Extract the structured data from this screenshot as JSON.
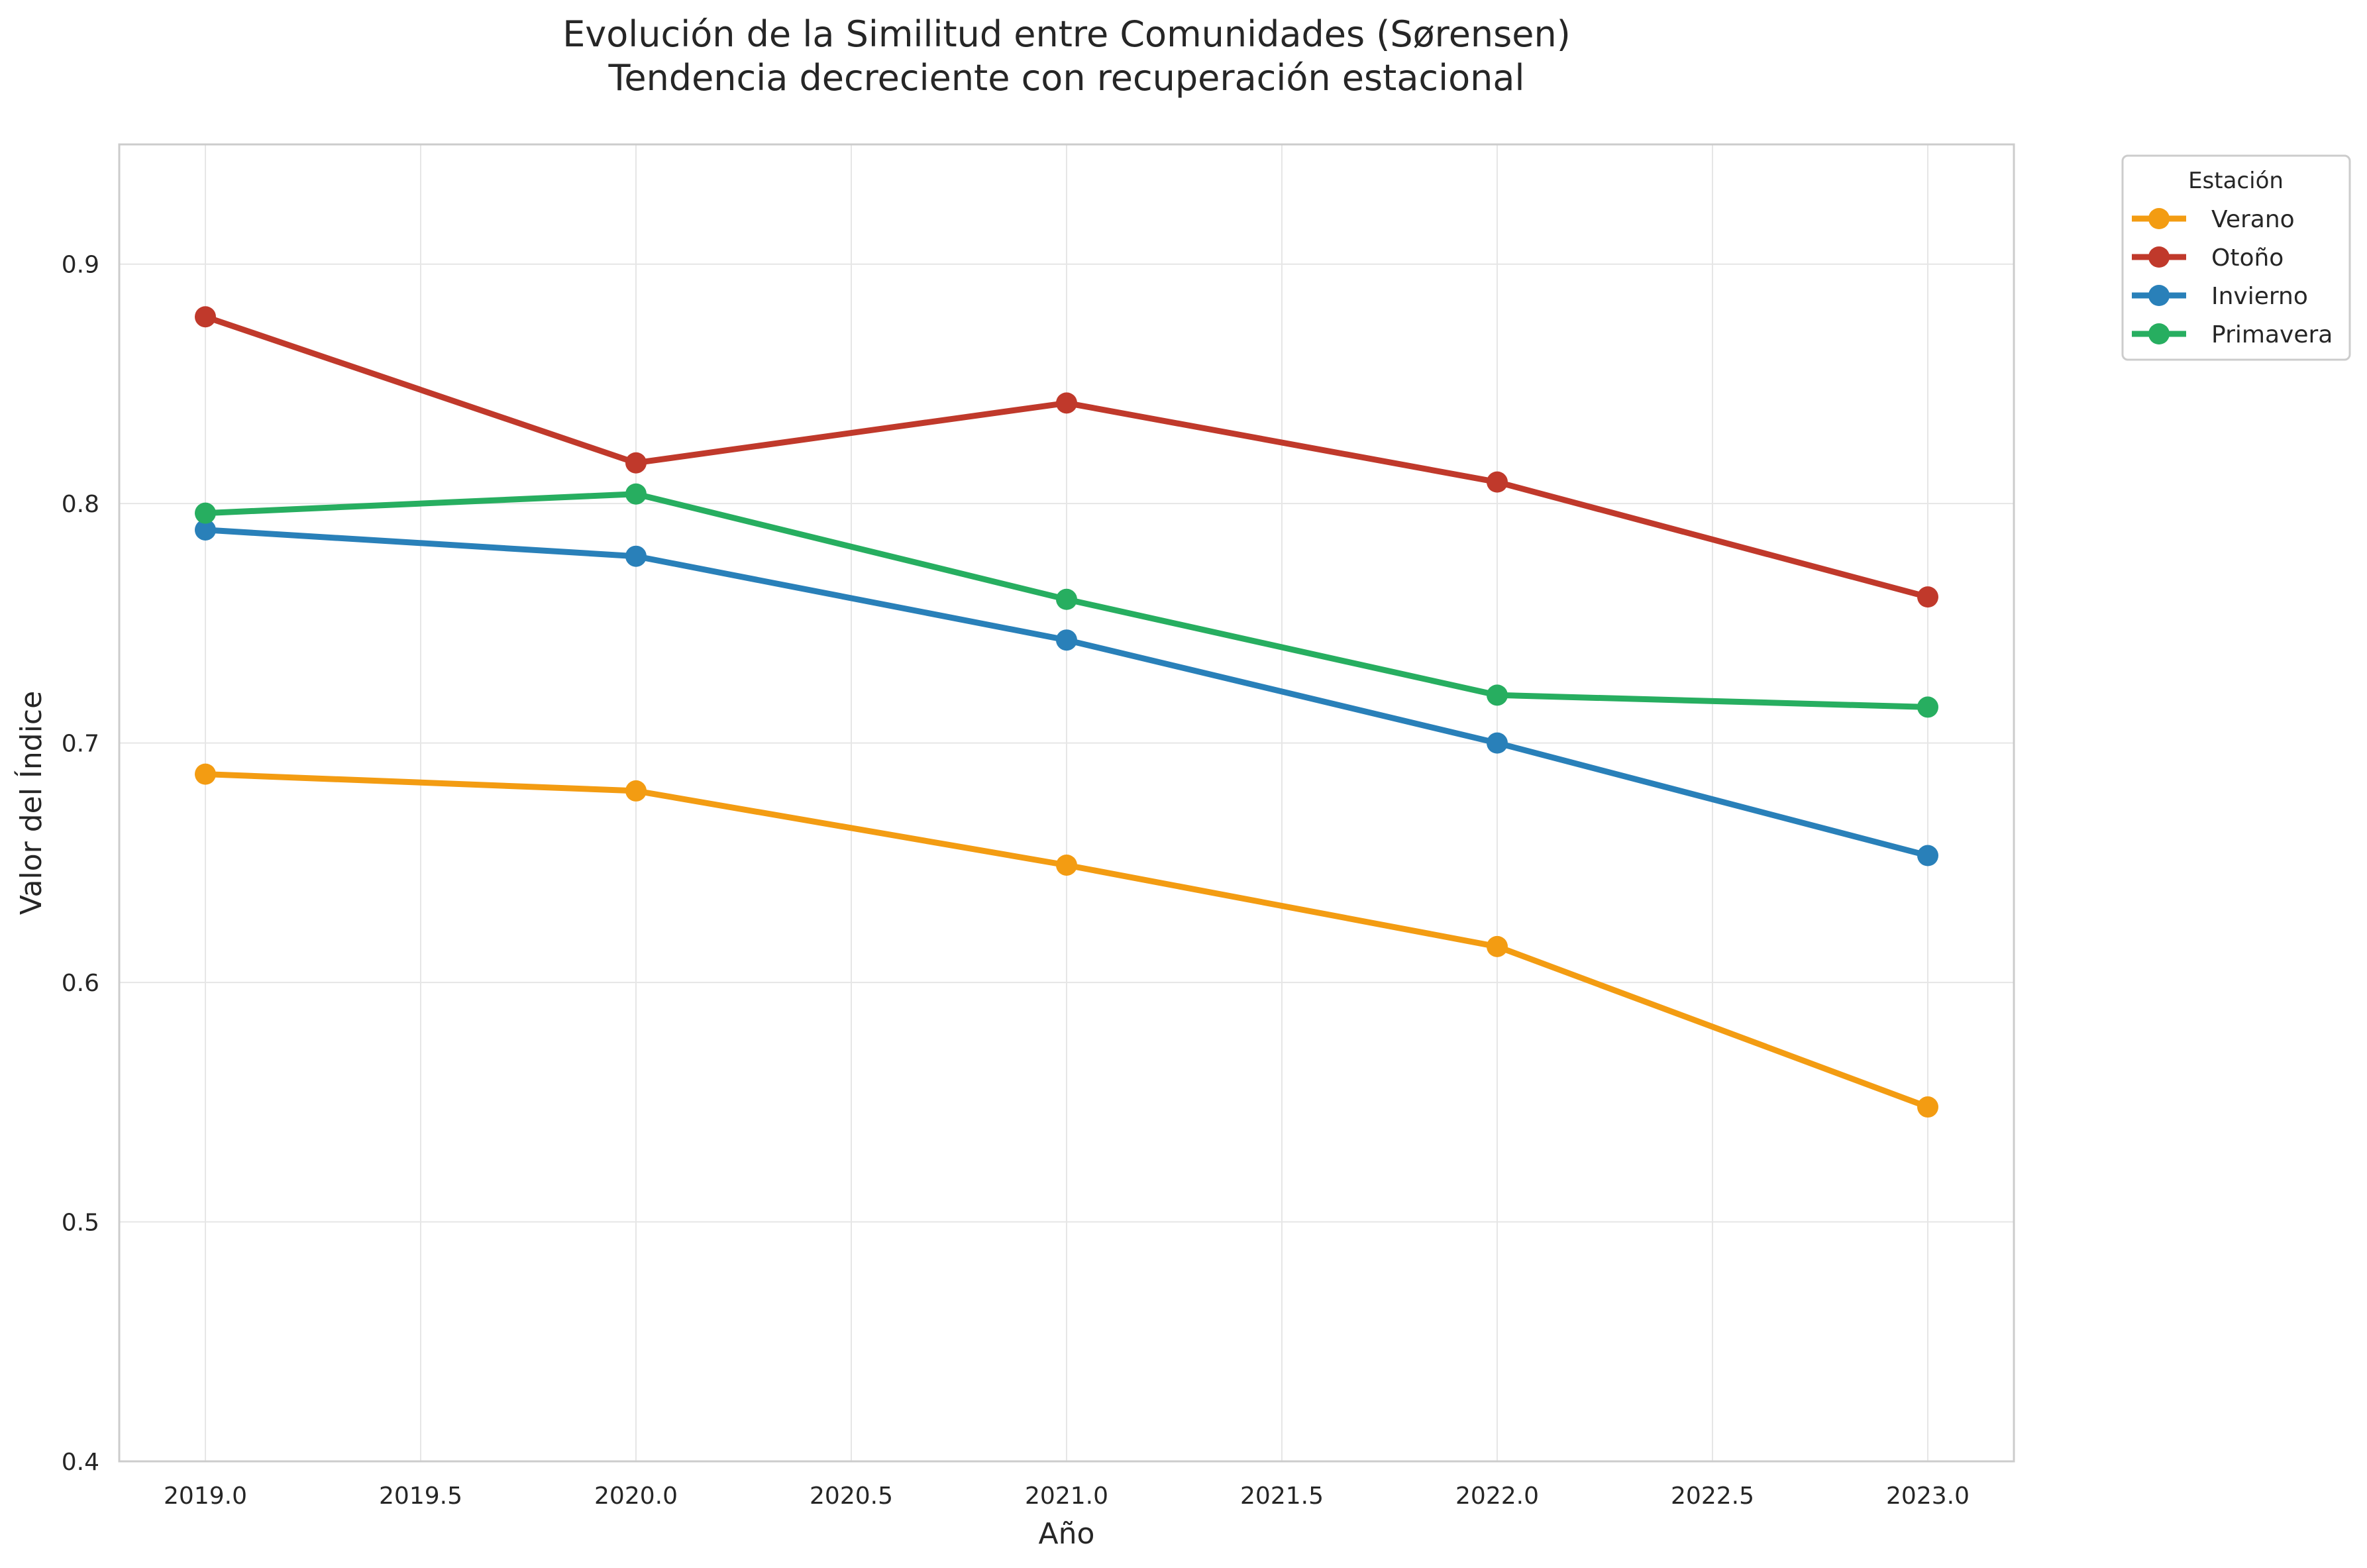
{
  "chart_data": {
    "type": "line",
    "title": "Evolución de la Similitud entre Comunidades (Sørensen)",
    "subtitle": "Tendencia decreciente con recuperación estacional",
    "xlabel": "Año",
    "ylabel": "Valor del Índice",
    "x": [
      2019,
      2020,
      2021,
      2022,
      2023
    ],
    "xlim": [
      2018.8,
      2023.2
    ],
    "ylim": [
      0.4,
      0.95
    ],
    "xticks": [
      2019.0,
      2019.5,
      2020.0,
      2020.5,
      2021.0,
      2021.5,
      2022.0,
      2022.5,
      2023.0
    ],
    "xtick_labels": [
      "2019.0",
      "2019.5",
      "2020.0",
      "2020.5",
      "2021.0",
      "2021.5",
      "2022.0",
      "2022.5",
      "2023.0"
    ],
    "yticks": [
      0.4,
      0.5,
      0.6,
      0.7,
      0.8,
      0.9
    ],
    "ytick_labels": [
      "0.4",
      "0.5",
      "0.6",
      "0.7",
      "0.8",
      "0.9"
    ],
    "grid": true,
    "legend": {
      "title": "Estación",
      "placement": "outside top-right"
    },
    "series": [
      {
        "name": "Verano",
        "color": "#f39c12",
        "values": [
          0.687,
          0.68,
          0.649,
          0.615,
          0.548
        ]
      },
      {
        "name": "Otoño",
        "color": "#c0392b",
        "values": [
          0.878,
          0.817,
          0.842,
          0.809,
          0.761
        ]
      },
      {
        "name": "Invierno",
        "color": "#2980b9",
        "values": [
          0.789,
          0.778,
          0.743,
          0.7,
          0.653
        ]
      },
      {
        "name": "Primavera",
        "color": "#27ae60",
        "values": [
          0.796,
          0.804,
          0.76,
          0.72,
          0.715
        ]
      }
    ]
  }
}
